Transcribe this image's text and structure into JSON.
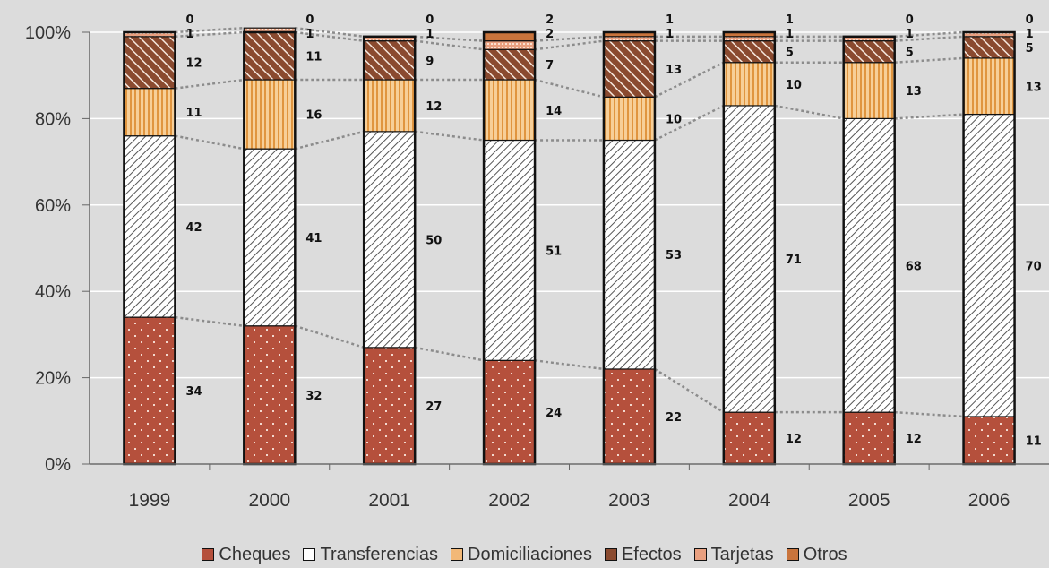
{
  "chart_data": {
    "type": "bar",
    "stacked": true,
    "normalized": true,
    "title": "",
    "xlabel": "",
    "ylabel": "",
    "ylim": [
      0,
      100
    ],
    "yticks": [
      "0%",
      "20%",
      "40%",
      "60%",
      "80%",
      "100%"
    ],
    "categories": [
      "1999",
      "2000",
      "2001",
      "2002",
      "2003",
      "2004",
      "2005",
      "2006"
    ],
    "series": [
      {
        "name": "Cheques",
        "color": "#b5503c",
        "values": [
          34,
          32,
          27,
          24,
          22,
          12,
          12,
          11
        ]
      },
      {
        "name": "Transferencias",
        "color": "#ffffff",
        "values": [
          42,
          41,
          50,
          51,
          53,
          71,
          68,
          70
        ]
      },
      {
        "name": "Domiciliaciones",
        "color": "#f2b877",
        "values": [
          11,
          16,
          12,
          14,
          10,
          10,
          13,
          13
        ]
      },
      {
        "name": "Efectos",
        "color": "#8a4a2f",
        "values": [
          12,
          11,
          9,
          7,
          13,
          5,
          5,
          5
        ]
      },
      {
        "name": "Tarjetas",
        "color": "#e9a080",
        "values": [
          1,
          1,
          1,
          2,
          1,
          1,
          1,
          1
        ]
      },
      {
        "name": "Otros",
        "color": "#c9743c",
        "values": [
          0,
          0,
          0,
          2,
          1,
          1,
          0,
          0
        ]
      }
    ],
    "grid": true,
    "legend": "bottom"
  }
}
